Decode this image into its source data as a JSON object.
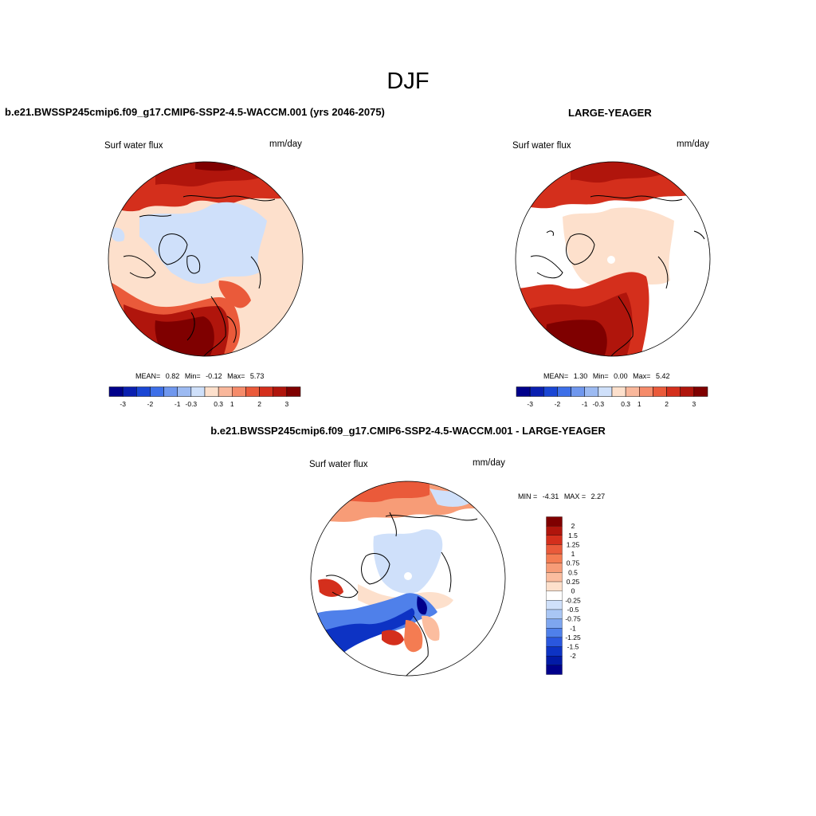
{
  "figure": {
    "title": "DJF"
  },
  "panels": [
    {
      "title": "b.e21.BWSSP245cmip6.f09_g17.CMIP6-SSP2-4.5-WACCM.001 (yrs 2046-2075)",
      "variable": "Surf water flux",
      "units": "mm/day",
      "stats": {
        "mean_label": "MEAN=",
        "mean": "0.82",
        "min_label": "Min=",
        "min": "-0.12",
        "max_label": "Max=",
        "max": "5.73"
      }
    },
    {
      "title": "LARGE-YEAGER",
      "variable": "Surf water flux",
      "units": "mm/day",
      "stats": {
        "mean_label": "MEAN=",
        "mean": "1.30",
        "min_label": "Min=",
        "min": "0.00",
        "max_label": "Max=",
        "max": "5.42"
      }
    },
    {
      "title": "b.e21.BWSSP245cmip6.f09_g17.CMIP6-SSP2-4.5-WACCM.001 - LARGE-YEAGER",
      "variable": "Surf water flux",
      "units": "mm/day",
      "stats": {
        "min_label": "MIN =",
        "min": "-4.31",
        "max_label": "MAX =",
        "max": "2.27"
      }
    }
  ],
  "colorbar_abs": {
    "colors": [
      "#00008b",
      "#0a1fb0",
      "#1a46d4",
      "#3d6fe8",
      "#6f97ee",
      "#9cbaf2",
      "#cfe0fa",
      "#fde0cc",
      "#f9b79b",
      "#f58b6a",
      "#ea5a3a",
      "#d42f1c",
      "#b0150c",
      "#7f0000"
    ],
    "labels": [
      "-3",
      "-2",
      "-1",
      "-0.3",
      "0.3",
      "1",
      "2",
      "3"
    ]
  },
  "colorbar_diff": {
    "colors_top_to_bottom": [
      "#7f0000",
      "#b0150c",
      "#d42f1c",
      "#ea5a3a",
      "#f47c52",
      "#f79c77",
      "#fbbd9f",
      "#fde0cc",
      "#ffffff",
      "#cfe0fa",
      "#a9c6f4",
      "#7ea6ef",
      "#4f80ea",
      "#2a57de",
      "#0d33c4",
      "#021aa6",
      "#00008b"
    ],
    "labels": [
      "2",
      "1.5",
      "1.25",
      "1",
      "0.75",
      "0.5",
      "0.25",
      "0",
      "-0.25",
      "-0.5",
      "-0.75",
      "-1",
      "-1.25",
      "-1.5",
      "-2"
    ]
  }
}
